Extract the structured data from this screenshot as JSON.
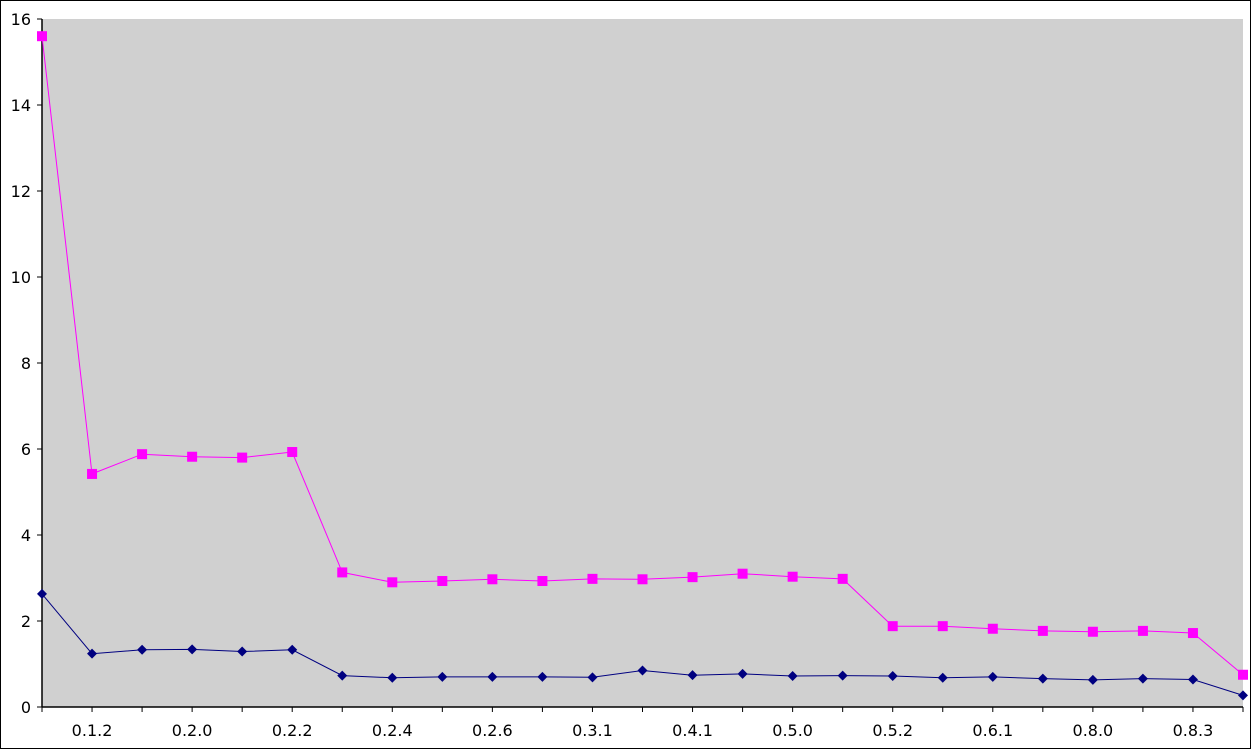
{
  "chart_data": {
    "type": "line",
    "categories": [
      "",
      "0.1.2",
      "",
      "0.2.0",
      "",
      "0.2.2",
      "",
      "0.2.4",
      "",
      "0.2.6",
      "",
      "0.3.1",
      "",
      "0.4.1",
      "",
      "0.5.0",
      "",
      "0.5.2",
      "",
      "0.6.1",
      "",
      "0.8.0",
      "",
      "0.8.3",
      ""
    ],
    "series": [
      {
        "color": "#FF00FF",
        "marker": "square",
        "values": [
          15.6,
          5.42,
          5.88,
          5.82,
          5.8,
          5.93,
          3.13,
          2.9,
          2.93,
          2.97,
          2.93,
          2.98,
          2.97,
          3.02,
          3.1,
          3.03,
          2.98,
          1.88,
          1.88,
          1.82,
          1.77,
          1.75,
          1.77,
          1.72,
          0.75
        ]
      },
      {
        "color": "#000080",
        "marker": "diamond",
        "values": [
          2.63,
          1.24,
          1.33,
          1.34,
          1.29,
          1.33,
          0.73,
          0.68,
          0.7,
          0.7,
          0.7,
          0.69,
          0.85,
          0.74,
          0.77,
          0.72,
          0.73,
          0.72,
          0.68,
          0.7,
          0.66,
          0.63,
          0.66,
          0.64,
          0.27
        ]
      }
    ],
    "ylim": [
      0,
      16
    ],
    "yticks": [
      "0",
      "2",
      "4",
      "6",
      "8",
      "10",
      "12",
      "14",
      "16"
    ],
    "grid": false,
    "plot_background": "#D0D0D0",
    "axis_color": "#000000"
  }
}
